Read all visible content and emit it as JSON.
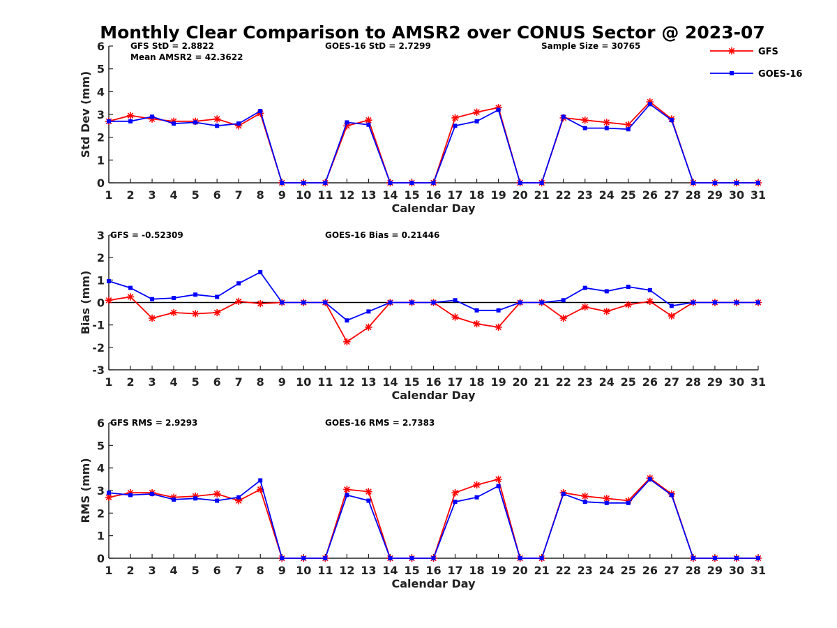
{
  "title": "Monthly Clear Comparison to AMSR2 over CONUS Sector @ 2023-07",
  "legend": {
    "placement": "top-right",
    "entries": [
      {
        "name": "GFS",
        "color": "#ff0000",
        "marker": "asterisk"
      },
      {
        "name": "GOES-16",
        "color": "#0000ff",
        "marker": "square"
      }
    ]
  },
  "chart_data": [
    {
      "type": "line",
      "xlabel": "Calendar Day",
      "ylabel": "Std Dev (mm)",
      "xlim": [
        1,
        31
      ],
      "ylim": [
        0,
        6
      ],
      "yticks": [
        0,
        1,
        2,
        3,
        4,
        5,
        6
      ],
      "annotations": [
        "GFS StD = 2.8822",
        "Mean AMSR2 = 42.3622",
        "GOES-16 StD = 2.7299",
        "Sample Size = 30765"
      ],
      "x": [
        1,
        2,
        3,
        4,
        5,
        6,
        7,
        8,
        9,
        10,
        11,
        12,
        13,
        14,
        15,
        16,
        17,
        18,
        19,
        20,
        21,
        22,
        23,
        24,
        25,
        26,
        27,
        28,
        29,
        30,
        31
      ],
      "series": [
        {
          "name": "GFS",
          "color": "#ff0000",
          "values": [
            2.7,
            2.95,
            2.8,
            2.7,
            2.7,
            2.8,
            2.5,
            3.05,
            0,
            0,
            0,
            2.5,
            2.75,
            0,
            0,
            0,
            2.85,
            3.1,
            3.3,
            0,
            0,
            2.85,
            2.75,
            2.65,
            2.55,
            3.55,
            2.8,
            0,
            0,
            0,
            0
          ]
        },
        {
          "name": "GOES-16",
          "color": "#0000ff",
          "values": [
            2.7,
            2.7,
            2.9,
            2.6,
            2.65,
            2.5,
            2.6,
            3.15,
            0,
            0,
            0,
            2.65,
            2.55,
            0,
            0,
            0,
            2.5,
            2.7,
            3.2,
            0,
            0,
            2.9,
            2.4,
            2.4,
            2.35,
            3.45,
            2.75,
            0,
            0,
            0,
            0
          ]
        }
      ]
    },
    {
      "type": "line",
      "xlabel": "Calendar Day",
      "ylabel": "Bias (mm)",
      "xlim": [
        1,
        31
      ],
      "ylim": [
        -3,
        3
      ],
      "yticks": [
        -3,
        -2,
        -1,
        0,
        1,
        2,
        3
      ],
      "annotations": [
        "GFS = -0.52309",
        "GOES-16 Bias = 0.21446"
      ],
      "zero_line": true,
      "x": [
        1,
        2,
        3,
        4,
        5,
        6,
        7,
        8,
        9,
        10,
        11,
        12,
        13,
        14,
        15,
        16,
        17,
        18,
        19,
        20,
        21,
        22,
        23,
        24,
        25,
        26,
        27,
        28,
        29,
        30,
        31
      ],
      "series": [
        {
          "name": "GFS",
          "color": "#ff0000",
          "values": [
            0.1,
            0.25,
            -0.7,
            -0.45,
            -0.5,
            -0.45,
            0.05,
            -0.05,
            0,
            0,
            0,
            -1.75,
            -1.1,
            0,
            0,
            0,
            -0.65,
            -0.95,
            -1.1,
            0,
            0,
            -0.7,
            -0.2,
            -0.4,
            -0.1,
            0.05,
            -0.6,
            0,
            0,
            0,
            0
          ]
        },
        {
          "name": "GOES-16",
          "color": "#0000ff",
          "values": [
            0.95,
            0.65,
            0.15,
            0.2,
            0.35,
            0.25,
            0.85,
            1.35,
            0,
            0,
            0,
            -0.8,
            -0.4,
            0,
            0,
            0,
            0.1,
            -0.35,
            -0.35,
            0,
            0,
            0.1,
            0.65,
            0.5,
            0.7,
            0.55,
            -0.15,
            0,
            0,
            0,
            0
          ]
        }
      ]
    },
    {
      "type": "line",
      "xlabel": "Calendar Day",
      "ylabel": "RMS (mm)",
      "xlim": [
        1,
        31
      ],
      "ylim": [
        0,
        6
      ],
      "yticks": [
        0,
        1,
        2,
        3,
        4,
        5,
        6
      ],
      "annotations": [
        "GFS RMS = 2.9293",
        "GOES-16 RMS = 2.7383"
      ],
      "x": [
        1,
        2,
        3,
        4,
        5,
        6,
        7,
        8,
        9,
        10,
        11,
        12,
        13,
        14,
        15,
        16,
        17,
        18,
        19,
        20,
        21,
        22,
        23,
        24,
        25,
        26,
        27,
        28,
        29,
        30,
        31
      ],
      "series": [
        {
          "name": "GFS",
          "color": "#ff0000",
          "values": [
            2.7,
            2.9,
            2.9,
            2.7,
            2.75,
            2.85,
            2.55,
            3.05,
            0,
            0,
            0,
            3.05,
            2.95,
            0,
            0,
            0,
            2.9,
            3.25,
            3.5,
            0,
            0,
            2.9,
            2.75,
            2.65,
            2.55,
            3.55,
            2.85,
            0,
            0,
            0,
            0
          ]
        },
        {
          "name": "GOES-16",
          "color": "#0000ff",
          "values": [
            2.9,
            2.8,
            2.85,
            2.6,
            2.65,
            2.55,
            2.7,
            3.45,
            0,
            0,
            0,
            2.8,
            2.55,
            0,
            0,
            0,
            2.5,
            2.7,
            3.2,
            0,
            0,
            2.85,
            2.5,
            2.45,
            2.45,
            3.5,
            2.8,
            0,
            0,
            0,
            0
          ]
        }
      ]
    }
  ]
}
